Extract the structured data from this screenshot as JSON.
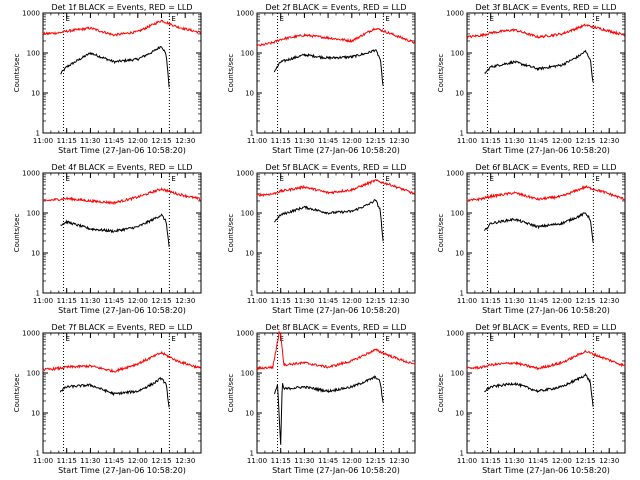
{
  "figure": {
    "x_label": "Start Time (27-Jan-06 10:58:20)",
    "y_label": "Counts/sec",
    "x_ticks": [
      "11:00",
      "11:15",
      "11:30",
      "11:45",
      "12:00",
      "12:15",
      "12:30"
    ],
    "y_ticks": [
      "1",
      "10",
      "100",
      "1000"
    ],
    "marker_lines_time": [
      "11:13",
      "12:20"
    ],
    "marker_label": "E",
    "colors": {
      "events": "#000000",
      "lld": "#ff0000",
      "background": "#ffffff"
    }
  },
  "chart_data": [
    {
      "type": "line",
      "title": "Det 1f BLACK = Events, RED = LLD",
      "xlim": [
        "11:00",
        "12:40"
      ],
      "ylim": [
        1,
        1000
      ],
      "y_scale": "log",
      "grid": false,
      "series": [
        {
          "name": "Events",
          "color": "#000000",
          "x": [
            "11:11",
            "11:15",
            "11:30",
            "11:45",
            "12:00",
            "12:10",
            "12:15",
            "12:18",
            "12:20"
          ],
          "y": [
            30,
            45,
            100,
            60,
            70,
            110,
            150,
            90,
            12
          ]
        },
        {
          "name": "LLD",
          "color": "#ff0000",
          "x": [
            "11:00",
            "11:10",
            "11:15",
            "11:30",
            "11:45",
            "12:00",
            "12:15",
            "12:25",
            "12:40"
          ],
          "y": [
            300,
            320,
            350,
            420,
            280,
            340,
            650,
            450,
            320
          ]
        }
      ]
    },
    {
      "type": "line",
      "title": "Det 2f BLACK = Events, RED = LLD",
      "xlim": [
        "11:00",
        "12:40"
      ],
      "ylim": [
        1,
        1000
      ],
      "y_scale": "log",
      "grid": false,
      "series": [
        {
          "name": "Events",
          "color": "#000000",
          "x": [
            "11:11",
            "11:15",
            "11:30",
            "11:45",
            "12:00",
            "12:10",
            "12:15",
            "12:18",
            "12:20"
          ],
          "y": [
            35,
            60,
            90,
            75,
            80,
            100,
            120,
            70,
            12
          ]
        },
        {
          "name": "LLD",
          "color": "#ff0000",
          "x": [
            "11:00",
            "11:10",
            "11:15",
            "11:30",
            "11:45",
            "12:00",
            "12:15",
            "12:25",
            "12:40"
          ],
          "y": [
            150,
            180,
            220,
            280,
            240,
            200,
            420,
            300,
            180
          ]
        }
      ]
    },
    {
      "type": "line",
      "title": "Det 3f BLACK = Events, RED = LLD",
      "xlim": [
        "11:00",
        "12:40"
      ],
      "ylim": [
        1,
        1000
      ],
      "y_scale": "log",
      "grid": false,
      "series": [
        {
          "name": "Events",
          "color": "#000000",
          "x": [
            "11:11",
            "11:15",
            "11:30",
            "11:45",
            "12:00",
            "12:10",
            "12:15",
            "12:18",
            "12:20"
          ],
          "y": [
            30,
            45,
            60,
            40,
            50,
            80,
            110,
            70,
            15
          ]
        },
        {
          "name": "LLD",
          "color": "#ff0000",
          "x": [
            "11:00",
            "11:10",
            "11:15",
            "11:30",
            "11:45",
            "12:00",
            "12:15",
            "12:25",
            "12:40"
          ],
          "y": [
            250,
            280,
            320,
            380,
            250,
            300,
            500,
            400,
            280
          ]
        }
      ]
    },
    {
      "type": "line",
      "title": "Det 4f BLACK = Events, RED = LLD",
      "xlim": [
        "11:00",
        "12:40"
      ],
      "ylim": [
        1,
        1000
      ],
      "y_scale": "log",
      "grid": false,
      "series": [
        {
          "name": "Events",
          "color": "#000000",
          "x": [
            "11:11",
            "11:15",
            "11:30",
            "11:45",
            "12:00",
            "12:10",
            "12:15",
            "12:18",
            "12:20"
          ],
          "y": [
            50,
            60,
            40,
            35,
            45,
            70,
            90,
            60,
            12
          ]
        },
        {
          "name": "LLD",
          "color": "#ff0000",
          "x": [
            "11:00",
            "11:10",
            "11:15",
            "11:30",
            "11:45",
            "12:00",
            "12:15",
            "12:25",
            "12:40"
          ],
          "y": [
            200,
            220,
            230,
            200,
            180,
            250,
            400,
            300,
            220
          ]
        }
      ]
    },
    {
      "type": "line",
      "title": "Det 5f BLACK = Events, RED = LLD",
      "xlim": [
        "11:00",
        "12:40"
      ],
      "ylim": [
        1,
        1000
      ],
      "y_scale": "log",
      "grid": false,
      "series": [
        {
          "name": "Events",
          "color": "#000000",
          "x": [
            "11:11",
            "11:15",
            "11:30",
            "11:45",
            "12:00",
            "12:10",
            "12:15",
            "12:18",
            "12:20"
          ],
          "y": [
            60,
            90,
            140,
            100,
            110,
            160,
            210,
            120,
            15
          ]
        },
        {
          "name": "LLD",
          "color": "#ff0000",
          "x": [
            "11:00",
            "11:10",
            "11:15",
            "11:30",
            "11:45",
            "12:00",
            "12:15",
            "12:25",
            "12:40"
          ],
          "y": [
            280,
            300,
            350,
            450,
            320,
            380,
            650,
            500,
            300
          ]
        }
      ]
    },
    {
      "type": "line",
      "title": "Det 6f BLACK = Events, RED = LLD",
      "xlim": [
        "11:00",
        "12:40"
      ],
      "ylim": [
        1,
        1000
      ],
      "y_scale": "log",
      "grid": false,
      "series": [
        {
          "name": "Events",
          "color": "#000000",
          "x": [
            "11:11",
            "11:15",
            "11:30",
            "11:45",
            "12:00",
            "12:10",
            "12:15",
            "12:18",
            "12:20"
          ],
          "y": [
            35,
            55,
            70,
            45,
            55,
            80,
            100,
            70,
            15
          ]
        },
        {
          "name": "LLD",
          "color": "#ff0000",
          "x": [
            "11:00",
            "11:10",
            "11:15",
            "11:30",
            "11:45",
            "12:00",
            "12:15",
            "12:25",
            "12:40"
          ],
          "y": [
            200,
            230,
            260,
            320,
            220,
            260,
            450,
            350,
            220
          ]
        }
      ]
    },
    {
      "type": "line",
      "title": "Det 7f BLACK = Events, RED = LLD",
      "xlim": [
        "11:00",
        "12:40"
      ],
      "ylim": [
        1,
        1000
      ],
      "y_scale": "log",
      "grid": false,
      "series": [
        {
          "name": "Events",
          "color": "#000000",
          "x": [
            "11:11",
            "11:15",
            "11:30",
            "11:45",
            "12:00",
            "12:10",
            "12:15",
            "12:18",
            "12:20"
          ],
          "y": [
            35,
            45,
            50,
            30,
            35,
            55,
            75,
            50,
            12
          ]
        },
        {
          "name": "LLD",
          "color": "#ff0000",
          "x": [
            "11:00",
            "11:10",
            "11:15",
            "11:30",
            "11:45",
            "12:00",
            "12:15",
            "12:25",
            "12:40"
          ],
          "y": [
            120,
            130,
            140,
            150,
            110,
            170,
            320,
            200,
            130
          ]
        }
      ]
    },
    {
      "type": "line",
      "title": "Det 8f BLACK = Events, RED = LLD",
      "xlim": [
        "11:00",
        "12:40"
      ],
      "ylim": [
        1,
        1000
      ],
      "y_scale": "log",
      "grid": false,
      "series": [
        {
          "name": "Events",
          "color": "#000000",
          "x": [
            "11:11",
            "11:13",
            "11:15",
            "11:16",
            "11:17",
            "11:30",
            "11:45",
            "12:00",
            "12:10",
            "12:15",
            "12:18",
            "12:20"
          ],
          "y": [
            30,
            50,
            1.5,
            60,
            40,
            45,
            35,
            45,
            65,
            80,
            60,
            15
          ]
        },
        {
          "name": "LLD",
          "color": "#ff0000",
          "x": [
            "11:00",
            "11:10",
            "11:14",
            "11:15",
            "11:17",
            "11:30",
            "11:45",
            "12:00",
            "12:15",
            "12:25",
            "12:40"
          ],
          "y": [
            130,
            140,
            1000,
            1000,
            160,
            180,
            140,
            200,
            380,
            260,
            160
          ]
        }
      ]
    },
    {
      "type": "line",
      "title": "Det 9f BLACK = Events, RED = LLD",
      "xlim": [
        "11:00",
        "12:40"
      ],
      "ylim": [
        1,
        1000
      ],
      "y_scale": "log",
      "grid": false,
      "series": [
        {
          "name": "Events",
          "color": "#000000",
          "x": [
            "11:11",
            "11:15",
            "11:30",
            "11:45",
            "12:00",
            "12:10",
            "12:15",
            "12:18",
            "12:20"
          ],
          "y": [
            35,
            45,
            55,
            35,
            45,
            70,
            90,
            60,
            12
          ]
        },
        {
          "name": "LLD",
          "color": "#ff0000",
          "x": [
            "11:00",
            "11:10",
            "11:15",
            "11:30",
            "11:45",
            "12:00",
            "12:15",
            "12:25",
            "12:40"
          ],
          "y": [
            130,
            140,
            160,
            180,
            130,
            180,
            350,
            250,
            150
          ]
        }
      ]
    }
  ]
}
